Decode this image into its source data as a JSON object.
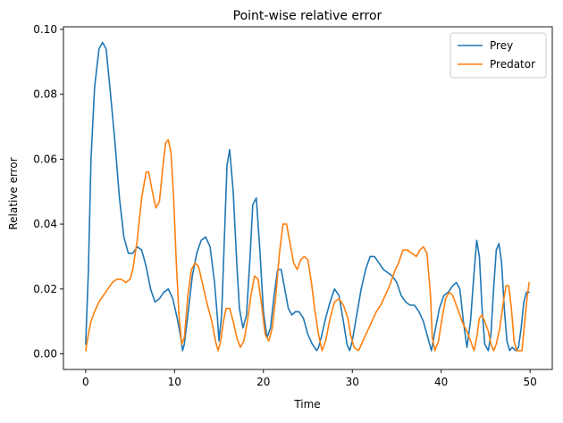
{
  "chart_data": {
    "type": "line",
    "title": "Point-wise relative error",
    "xlabel": "Time",
    "ylabel": "Relative error",
    "xlim": [
      -2.5,
      52.5
    ],
    "ylim": [
      -0.0048,
      0.1008
    ],
    "xticks": [
      0,
      10,
      20,
      30,
      40,
      50
    ],
    "xtick_labels": [
      "0",
      "10",
      "20",
      "30",
      "40",
      "50"
    ],
    "yticks": [
      0.0,
      0.02,
      0.04,
      0.06,
      0.08,
      0.1
    ],
    "ytick_labels": [
      "0.00",
      "0.02",
      "0.04",
      "0.06",
      "0.08",
      "0.10"
    ],
    "grid": false,
    "legend_position": "top-right",
    "series": [
      {
        "name": "Prey",
        "color": "#1f77b4",
        "x": [
          0,
          0.3,
          0.6,
          1.0,
          1.5,
          1.9,
          2.3,
          2.8,
          3.3,
          3.8,
          4.3,
          4.8,
          5.3,
          5.8,
          6.3,
          6.8,
          7.3,
          7.8,
          8.3,
          8.8,
          9.3,
          9.8,
          10.3,
          10.7,
          10.9,
          11.1,
          11.5,
          12.0,
          12.5,
          13.0,
          13.5,
          14.0,
          14.5,
          14.8,
          15.0,
          15.3,
          15.6,
          15.9,
          16.2,
          16.6,
          17.0,
          17.3,
          17.7,
          18.1,
          18.5,
          18.8,
          19.2,
          19.6,
          20.0,
          20.4,
          20.8,
          21.2,
          21.6,
          22.0,
          22.4,
          22.8,
          23.2,
          23.6,
          24.0,
          24.5,
          25.0,
          25.5,
          26.0,
          26.2,
          26.5,
          27.0,
          27.5,
          28.0,
          28.5,
          29.0,
          29.4,
          29.7,
          30.0,
          30.5,
          31.0,
          31.5,
          32.0,
          32.5,
          33.0,
          33.5,
          34.0,
          34.5,
          35.0,
          35.5,
          36.0,
          36.5,
          37.0,
          37.5,
          38.0,
          38.5,
          38.9,
          39.3,
          39.8,
          40.3,
          40.8,
          41.3,
          41.7,
          42.1,
          42.5,
          42.9,
          43.3,
          43.7,
          44.0,
          44.3,
          44.6,
          44.9,
          45.3,
          45.6,
          45.9,
          46.2,
          46.5,
          46.8,
          47.1,
          47.4,
          47.7,
          48.0,
          48.4,
          48.7,
          49.0,
          49.3,
          49.6,
          49.9
        ],
        "y": [
          0.003,
          0.025,
          0.06,
          0.082,
          0.094,
          0.096,
          0.094,
          0.08,
          0.065,
          0.048,
          0.036,
          0.031,
          0.031,
          0.033,
          0.032,
          0.027,
          0.02,
          0.016,
          0.017,
          0.019,
          0.02,
          0.017,
          0.011,
          0.005,
          0.001,
          0.003,
          0.012,
          0.024,
          0.031,
          0.035,
          0.036,
          0.033,
          0.022,
          0.012,
          0.004,
          0.012,
          0.035,
          0.058,
          0.063,
          0.05,
          0.028,
          0.014,
          0.008,
          0.012,
          0.03,
          0.046,
          0.048,
          0.032,
          0.013,
          0.005,
          0.008,
          0.018,
          0.026,
          0.026,
          0.02,
          0.014,
          0.012,
          0.013,
          0.013,
          0.011,
          0.006,
          0.003,
          0.001,
          0.002,
          0.005,
          0.011,
          0.016,
          0.02,
          0.018,
          0.01,
          0.003,
          0.001,
          0.004,
          0.012,
          0.02,
          0.026,
          0.03,
          0.03,
          0.028,
          0.026,
          0.025,
          0.024,
          0.022,
          0.018,
          0.016,
          0.015,
          0.015,
          0.013,
          0.01,
          0.005,
          0.001,
          0.007,
          0.014,
          0.018,
          0.019,
          0.021,
          0.022,
          0.02,
          0.01,
          0.002,
          0.01,
          0.025,
          0.035,
          0.03,
          0.014,
          0.003,
          0.001,
          0.006,
          0.02,
          0.032,
          0.034,
          0.028,
          0.014,
          0.004,
          0.001,
          0.002,
          0.001,
          0.002,
          0.008,
          0.016,
          0.019,
          0.019
        ]
      },
      {
        "name": "Predator",
        "color": "#ff7f0e",
        "x": [
          0,
          0.3,
          0.6,
          1.0,
          1.5,
          2.0,
          2.5,
          3.0,
          3.5,
          4.0,
          4.5,
          5.0,
          5.3,
          5.8,
          6.3,
          6.8,
          7.1,
          7.5,
          7.9,
          8.3,
          8.7,
          9.0,
          9.3,
          9.6,
          9.9,
          10.2,
          10.5,
          10.8,
          11.1,
          11.5,
          11.9,
          12.3,
          12.7,
          13.2,
          13.7,
          14.2,
          14.6,
          14.9,
          15.2,
          15.5,
          15.8,
          16.2,
          16.6,
          17.0,
          17.4,
          17.8,
          18.2,
          18.6,
          19.0,
          19.4,
          19.8,
          20.2,
          20.6,
          21.0,
          21.4,
          21.8,
          22.2,
          22.6,
          23.0,
          23.4,
          23.8,
          24.2,
          24.6,
          25.0,
          25.4,
          25.8,
          26.2,
          26.6,
          27.0,
          27.5,
          28.0,
          28.5,
          29.0,
          29.5,
          29.8,
          30.2,
          30.7,
          31.2,
          31.7,
          32.2,
          32.7,
          33.2,
          33.7,
          34.2,
          34.7,
          35.2,
          35.7,
          36.2,
          36.7,
          37.2,
          37.6,
          38.0,
          38.4,
          38.8,
          39.0,
          39.3,
          39.7,
          40.1,
          40.5,
          40.9,
          41.3,
          41.7,
          42.1,
          42.5,
          42.9,
          43.3,
          43.7,
          44.0,
          44.3,
          44.6,
          44.9,
          45.3,
          45.6,
          45.9,
          46.2,
          46.6,
          47.0,
          47.3,
          47.6,
          47.9,
          48.2,
          48.5,
          48.8,
          49.1,
          49.4,
          49.7,
          49.9
        ],
        "y": [
          0.001,
          0.006,
          0.01,
          0.013,
          0.016,
          0.018,
          0.02,
          0.022,
          0.023,
          0.023,
          0.022,
          0.023,
          0.026,
          0.035,
          0.048,
          0.056,
          0.056,
          0.05,
          0.045,
          0.047,
          0.058,
          0.065,
          0.066,
          0.062,
          0.048,
          0.028,
          0.012,
          0.003,
          0.005,
          0.018,
          0.026,
          0.028,
          0.027,
          0.021,
          0.015,
          0.01,
          0.004,
          0.001,
          0.004,
          0.01,
          0.014,
          0.014,
          0.01,
          0.005,
          0.002,
          0.004,
          0.01,
          0.018,
          0.024,
          0.023,
          0.015,
          0.006,
          0.004,
          0.008,
          0.018,
          0.031,
          0.04,
          0.04,
          0.034,
          0.028,
          0.026,
          0.029,
          0.03,
          0.029,
          0.022,
          0.013,
          0.006,
          0.001,
          0.004,
          0.011,
          0.016,
          0.017,
          0.015,
          0.011,
          0.006,
          0.002,
          0.001,
          0.004,
          0.007,
          0.01,
          0.013,
          0.015,
          0.018,
          0.021,
          0.025,
          0.028,
          0.032,
          0.032,
          0.031,
          0.03,
          0.032,
          0.033,
          0.031,
          0.018,
          0.005,
          0.001,
          0.004,
          0.011,
          0.017,
          0.019,
          0.018,
          0.015,
          0.012,
          0.009,
          0.007,
          0.004,
          0.001,
          0.005,
          0.011,
          0.012,
          0.01,
          0.007,
          0.003,
          0.001,
          0.003,
          0.008,
          0.016,
          0.021,
          0.021,
          0.014,
          0.004,
          0.001,
          0.001,
          0.001,
          0.01,
          0.018,
          0.022
        ]
      }
    ]
  }
}
